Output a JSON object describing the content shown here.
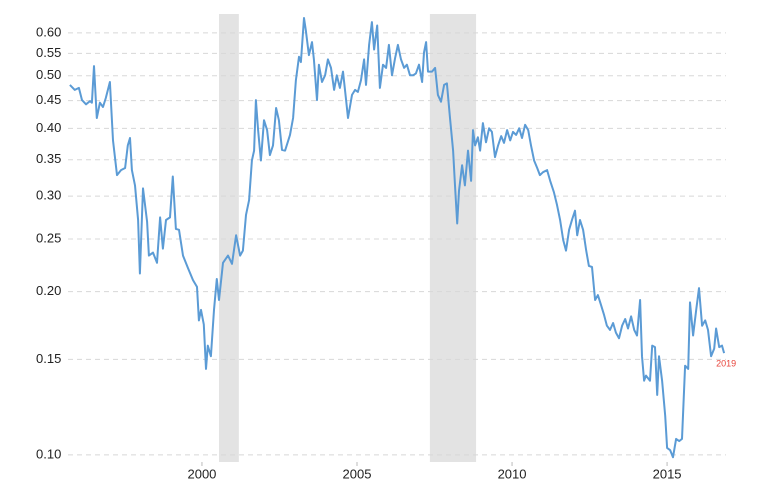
{
  "chart_data": {
    "type": "line",
    "log_scale_y": true,
    "grid": true,
    "annotation": "2019",
    "annotation_color": "#e8453c",
    "shaded_ranges": [
      [
        2000.55,
        2001.19
      ],
      [
        2007.35,
        2008.84
      ]
    ],
    "shade_color": "#e3e3e3",
    "xlim": [
      1995.68,
      2016.9
    ],
    "xticks": [
      2000,
      2005,
      2010,
      2015
    ],
    "ylim": [
      0.097,
      0.65
    ],
    "yticks": [
      {
        "value": 0.1,
        "label": "0.10"
      },
      0.15,
      {
        "value": 0.2,
        "label": "0.20"
      },
      0.25,
      {
        "value": 0.3,
        "label": "0.30"
      },
      0.35,
      {
        "value": 0.4,
        "label": "0.40"
      },
      0.45,
      {
        "value": 0.5,
        "label": "0.50"
      },
      0.55,
      {
        "value": 0.6,
        "label": "0.60"
      }
    ],
    "series": [
      {
        "color": "#5b9bd5",
        "x": [
          1995.74,
          1995.9,
          1996.03,
          1996.13,
          1996.26,
          1996.39,
          1996.45,
          1996.52,
          1996.61,
          1996.71,
          1996.81,
          1996.9,
          1997.03,
          1997.13,
          1997.26,
          1997.39,
          1997.52,
          1997.61,
          1997.68,
          1997.74,
          1997.84,
          1997.94,
          1998.0,
          1998.1,
          1998.23,
          1998.29,
          1998.42,
          1998.55,
          1998.65,
          1998.74,
          1998.84,
          1998.97,
          1999.06,
          1999.16,
          1999.26,
          1999.39,
          1999.55,
          1999.71,
          1999.84,
          1999.9,
          1999.97,
          2000.06,
          2000.13,
          2000.19,
          2000.29,
          2000.39,
          2000.48,
          2000.55,
          2000.68,
          2000.84,
          2000.97,
          2001.1,
          2001.23,
          2001.32,
          2001.42,
          2001.52,
          2001.61,
          2001.68,
          2001.74,
          2001.81,
          2001.9,
          2002.0,
          2002.1,
          2002.19,
          2002.29,
          2002.39,
          2002.48,
          2002.58,
          2002.68,
          2002.84,
          2002.94,
          2003.03,
          2003.13,
          2003.19,
          2003.29,
          2003.35,
          2003.45,
          2003.55,
          2003.61,
          2003.71,
          2003.77,
          2003.87,
          2003.97,
          2004.06,
          2004.16,
          2004.26,
          2004.35,
          2004.45,
          2004.55,
          2004.65,
          2004.71,
          2004.84,
          2004.94,
          2005.03,
          2005.13,
          2005.23,
          2005.29,
          2005.39,
          2005.48,
          2005.55,
          2005.65,
          2005.74,
          2005.84,
          2005.94,
          2006.03,
          2006.13,
          2006.23,
          2006.32,
          2006.42,
          2006.52,
          2006.61,
          2006.71,
          2006.81,
          2006.9,
          2007.0,
          2007.1,
          2007.16,
          2007.23,
          2007.29,
          2007.42,
          2007.52,
          2007.61,
          2007.71,
          2007.81,
          2007.9,
          2008.0,
          2008.1,
          2008.16,
          2008.23,
          2008.29,
          2008.39,
          2008.48,
          2008.58,
          2008.68,
          2008.74,
          2008.81,
          2008.9,
          2008.97,
          2009.06,
          2009.16,
          2009.26,
          2009.35,
          2009.45,
          2009.55,
          2009.65,
          2009.74,
          2009.84,
          2009.94,
          2010.03,
          2010.13,
          2010.23,
          2010.32,
          2010.42,
          2010.52,
          2010.61,
          2010.71,
          2010.81,
          2010.9,
          2011.0,
          2011.13,
          2011.23,
          2011.35,
          2011.45,
          2011.55,
          2011.65,
          2011.74,
          2011.84,
          2011.94,
          2012.03,
          2012.1,
          2012.19,
          2012.29,
          2012.39,
          2012.48,
          2012.58,
          2012.68,
          2012.77,
          2012.87,
          2012.97,
          2013.06,
          2013.16,
          2013.26,
          2013.35,
          2013.45,
          2013.55,
          2013.65,
          2013.74,
          2013.84,
          2013.94,
          2014.03,
          2014.13,
          2014.19,
          2014.26,
          2014.32,
          2014.45,
          2014.52,
          2014.61,
          2014.68,
          2014.74,
          2014.84,
          2014.94,
          2015.0,
          2015.1,
          2015.19,
          2015.29,
          2015.39,
          2015.48,
          2015.58,
          2015.68,
          2015.74,
          2015.84,
          2015.94,
          2016.03,
          2016.13,
          2016.23,
          2016.32,
          2016.42,
          2016.52,
          2016.58,
          2016.68,
          2016.77,
          2016.84
        ],
        "values": [
          0.481,
          0.471,
          0.475,
          0.451,
          0.443,
          0.449,
          0.446,
          0.521,
          0.418,
          0.446,
          0.438,
          0.455,
          0.487,
          0.38,
          0.328,
          0.335,
          0.338,
          0.372,
          0.384,
          0.335,
          0.314,
          0.271,
          0.216,
          0.31,
          0.269,
          0.233,
          0.236,
          0.226,
          0.274,
          0.24,
          0.271,
          0.274,
          0.326,
          0.261,
          0.26,
          0.233,
          0.221,
          0.21,
          0.204,
          0.177,
          0.185,
          0.174,
          0.144,
          0.159,
          0.152,
          0.185,
          0.211,
          0.193,
          0.226,
          0.233,
          0.225,
          0.254,
          0.233,
          0.238,
          0.277,
          0.295,
          0.349,
          0.364,
          0.451,
          0.397,
          0.349,
          0.414,
          0.397,
          0.357,
          0.372,
          0.436,
          0.414,
          0.365,
          0.364,
          0.389,
          0.418,
          0.491,
          0.542,
          0.53,
          0.639,
          0.607,
          0.546,
          0.577,
          0.536,
          0.451,
          0.524,
          0.487,
          0.501,
          0.536,
          0.517,
          0.471,
          0.501,
          0.475,
          0.509,
          0.451,
          0.418,
          0.461,
          0.471,
          0.467,
          0.491,
          0.536,
          0.481,
          0.57,
          0.628,
          0.559,
          0.619,
          0.475,
          0.524,
          0.517,
          0.57,
          0.501,
          0.539,
          0.57,
          0.536,
          0.517,
          0.524,
          0.501,
          0.501,
          0.505,
          0.524,
          0.487,
          0.552,
          0.577,
          0.509,
          0.509,
          0.517,
          0.461,
          0.448,
          0.481,
          0.484,
          0.418,
          0.364,
          0.314,
          0.267,
          0.307,
          0.342,
          0.314,
          0.364,
          0.32,
          0.397,
          0.372,
          0.385,
          0.364,
          0.409,
          0.377,
          0.4,
          0.394,
          0.354,
          0.372,
          0.387,
          0.376,
          0.397,
          0.38,
          0.394,
          0.389,
          0.4,
          0.384,
          0.406,
          0.397,
          0.372,
          0.349,
          0.338,
          0.328,
          0.332,
          0.335,
          0.32,
          0.305,
          0.289,
          0.271,
          0.249,
          0.238,
          0.26,
          0.272,
          0.282,
          0.254,
          0.271,
          0.26,
          0.238,
          0.223,
          0.222,
          0.193,
          0.197,
          0.189,
          0.181,
          0.173,
          0.17,
          0.175,
          0.168,
          0.164,
          0.173,
          0.178,
          0.171,
          0.18,
          0.17,
          0.166,
          0.193,
          0.152,
          0.137,
          0.14,
          0.137,
          0.159,
          0.158,
          0.129,
          0.152,
          0.137,
          0.118,
          0.103,
          0.102,
          0.099,
          0.107,
          0.106,
          0.107,
          0.146,
          0.144,
          0.191,
          0.166,
          0.185,
          0.203,
          0.173,
          0.177,
          0.17,
          0.152,
          0.157,
          0.171,
          0.158,
          0.159,
          0.154
        ]
      }
    ]
  }
}
